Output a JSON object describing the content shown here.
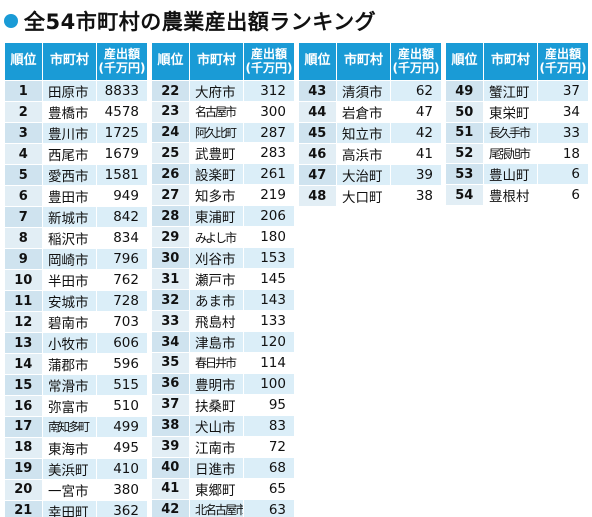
{
  "title": "全54市町村の農業産出額ランキング",
  "headers": {
    "rank": "順位",
    "city": "市町村",
    "value_line1": "産出額",
    "value_line2": "(千万円)"
  },
  "blocks": [
    [
      {
        "rank": "1",
        "city": "田原市",
        "value": "8833"
      },
      {
        "rank": "2",
        "city": "豊橋市",
        "value": "4578"
      },
      {
        "rank": "3",
        "city": "豊川市",
        "value": "1725"
      },
      {
        "rank": "4",
        "city": "西尾市",
        "value": "1679"
      },
      {
        "rank": "5",
        "city": "愛西市",
        "value": "1581"
      },
      {
        "rank": "6",
        "city": "豊田市",
        "value": "949"
      },
      {
        "rank": "7",
        "city": "新城市",
        "value": "842"
      },
      {
        "rank": "8",
        "city": "稲沢市",
        "value": "834"
      },
      {
        "rank": "9",
        "city": "岡崎市",
        "value": "796"
      },
      {
        "rank": "10",
        "city": "半田市",
        "value": "762"
      },
      {
        "rank": "11",
        "city": "安城市",
        "value": "728"
      },
      {
        "rank": "12",
        "city": "碧南市",
        "value": "703"
      },
      {
        "rank": "13",
        "city": "小牧市",
        "value": "606"
      },
      {
        "rank": "14",
        "city": "蒲郡市",
        "value": "596"
      },
      {
        "rank": "15",
        "city": "常滑市",
        "value": "515"
      },
      {
        "rank": "16",
        "city": "弥富市",
        "value": "510"
      },
      {
        "rank": "17",
        "city": "南知多町",
        "value": "499",
        "narrow": true
      },
      {
        "rank": "18",
        "city": "東海市",
        "value": "495"
      },
      {
        "rank": "19",
        "city": "美浜町",
        "value": "410"
      },
      {
        "rank": "20",
        "city": "一宮市",
        "value": "380"
      },
      {
        "rank": "21",
        "city": "幸田町",
        "value": "362"
      }
    ],
    [
      {
        "rank": "22",
        "city": "大府市",
        "value": "312"
      },
      {
        "rank": "23",
        "city": "名古屋市",
        "value": "300",
        "narrow": true
      },
      {
        "rank": "24",
        "city": "阿久比町",
        "value": "287",
        "narrow": true
      },
      {
        "rank": "25",
        "city": "武豊町",
        "value": "283"
      },
      {
        "rank": "26",
        "city": "設楽町",
        "value": "261"
      },
      {
        "rank": "27",
        "city": "知多市",
        "value": "219"
      },
      {
        "rank": "28",
        "city": "東浦町",
        "value": "206"
      },
      {
        "rank": "29",
        "city": "みよし市",
        "value": "180",
        "narrow": true
      },
      {
        "rank": "30",
        "city": "刈谷市",
        "value": "153"
      },
      {
        "rank": "31",
        "city": "瀬戸市",
        "value": "145"
      },
      {
        "rank": "32",
        "city": "あま市",
        "value": "143"
      },
      {
        "rank": "33",
        "city": "飛島村",
        "value": "133"
      },
      {
        "rank": "34",
        "city": "津島市",
        "value": "120"
      },
      {
        "rank": "35",
        "city": "春日井市",
        "value": "114",
        "narrow": true
      },
      {
        "rank": "36",
        "city": "豊明市",
        "value": "100"
      },
      {
        "rank": "37",
        "city": "扶桑町",
        "value": "95"
      },
      {
        "rank": "38",
        "city": "犬山市",
        "value": "83"
      },
      {
        "rank": "39",
        "city": "江南市",
        "value": "72"
      },
      {
        "rank": "40",
        "city": "日進市",
        "value": "68"
      },
      {
        "rank": "41",
        "city": "東郷町",
        "value": "65"
      },
      {
        "rank": "42",
        "city": "北名古屋市",
        "value": "63",
        "narrow": true
      }
    ],
    [
      {
        "rank": "43",
        "city": "清須市",
        "value": "62"
      },
      {
        "rank": "44",
        "city": "岩倉市",
        "value": "47"
      },
      {
        "rank": "45",
        "city": "知立市",
        "value": "42"
      },
      {
        "rank": "46",
        "city": "高浜市",
        "value": "41"
      },
      {
        "rank": "47",
        "city": "大治町",
        "value": "39"
      },
      {
        "rank": "48",
        "city": "大口町",
        "value": "38"
      }
    ],
    [
      {
        "rank": "49",
        "city": "蟹江町",
        "value": "37"
      },
      {
        "rank": "50",
        "city": "東栄町",
        "value": "34"
      },
      {
        "rank": "51",
        "city": "長久手市",
        "value": "33",
        "narrow": true
      },
      {
        "rank": "52",
        "city": "尾張旭市",
        "value": "18",
        "narrow": true
      },
      {
        "rank": "53",
        "city": "豊山町",
        "value": "6"
      },
      {
        "rank": "54",
        "city": "豊根村",
        "value": "6"
      }
    ]
  ]
}
